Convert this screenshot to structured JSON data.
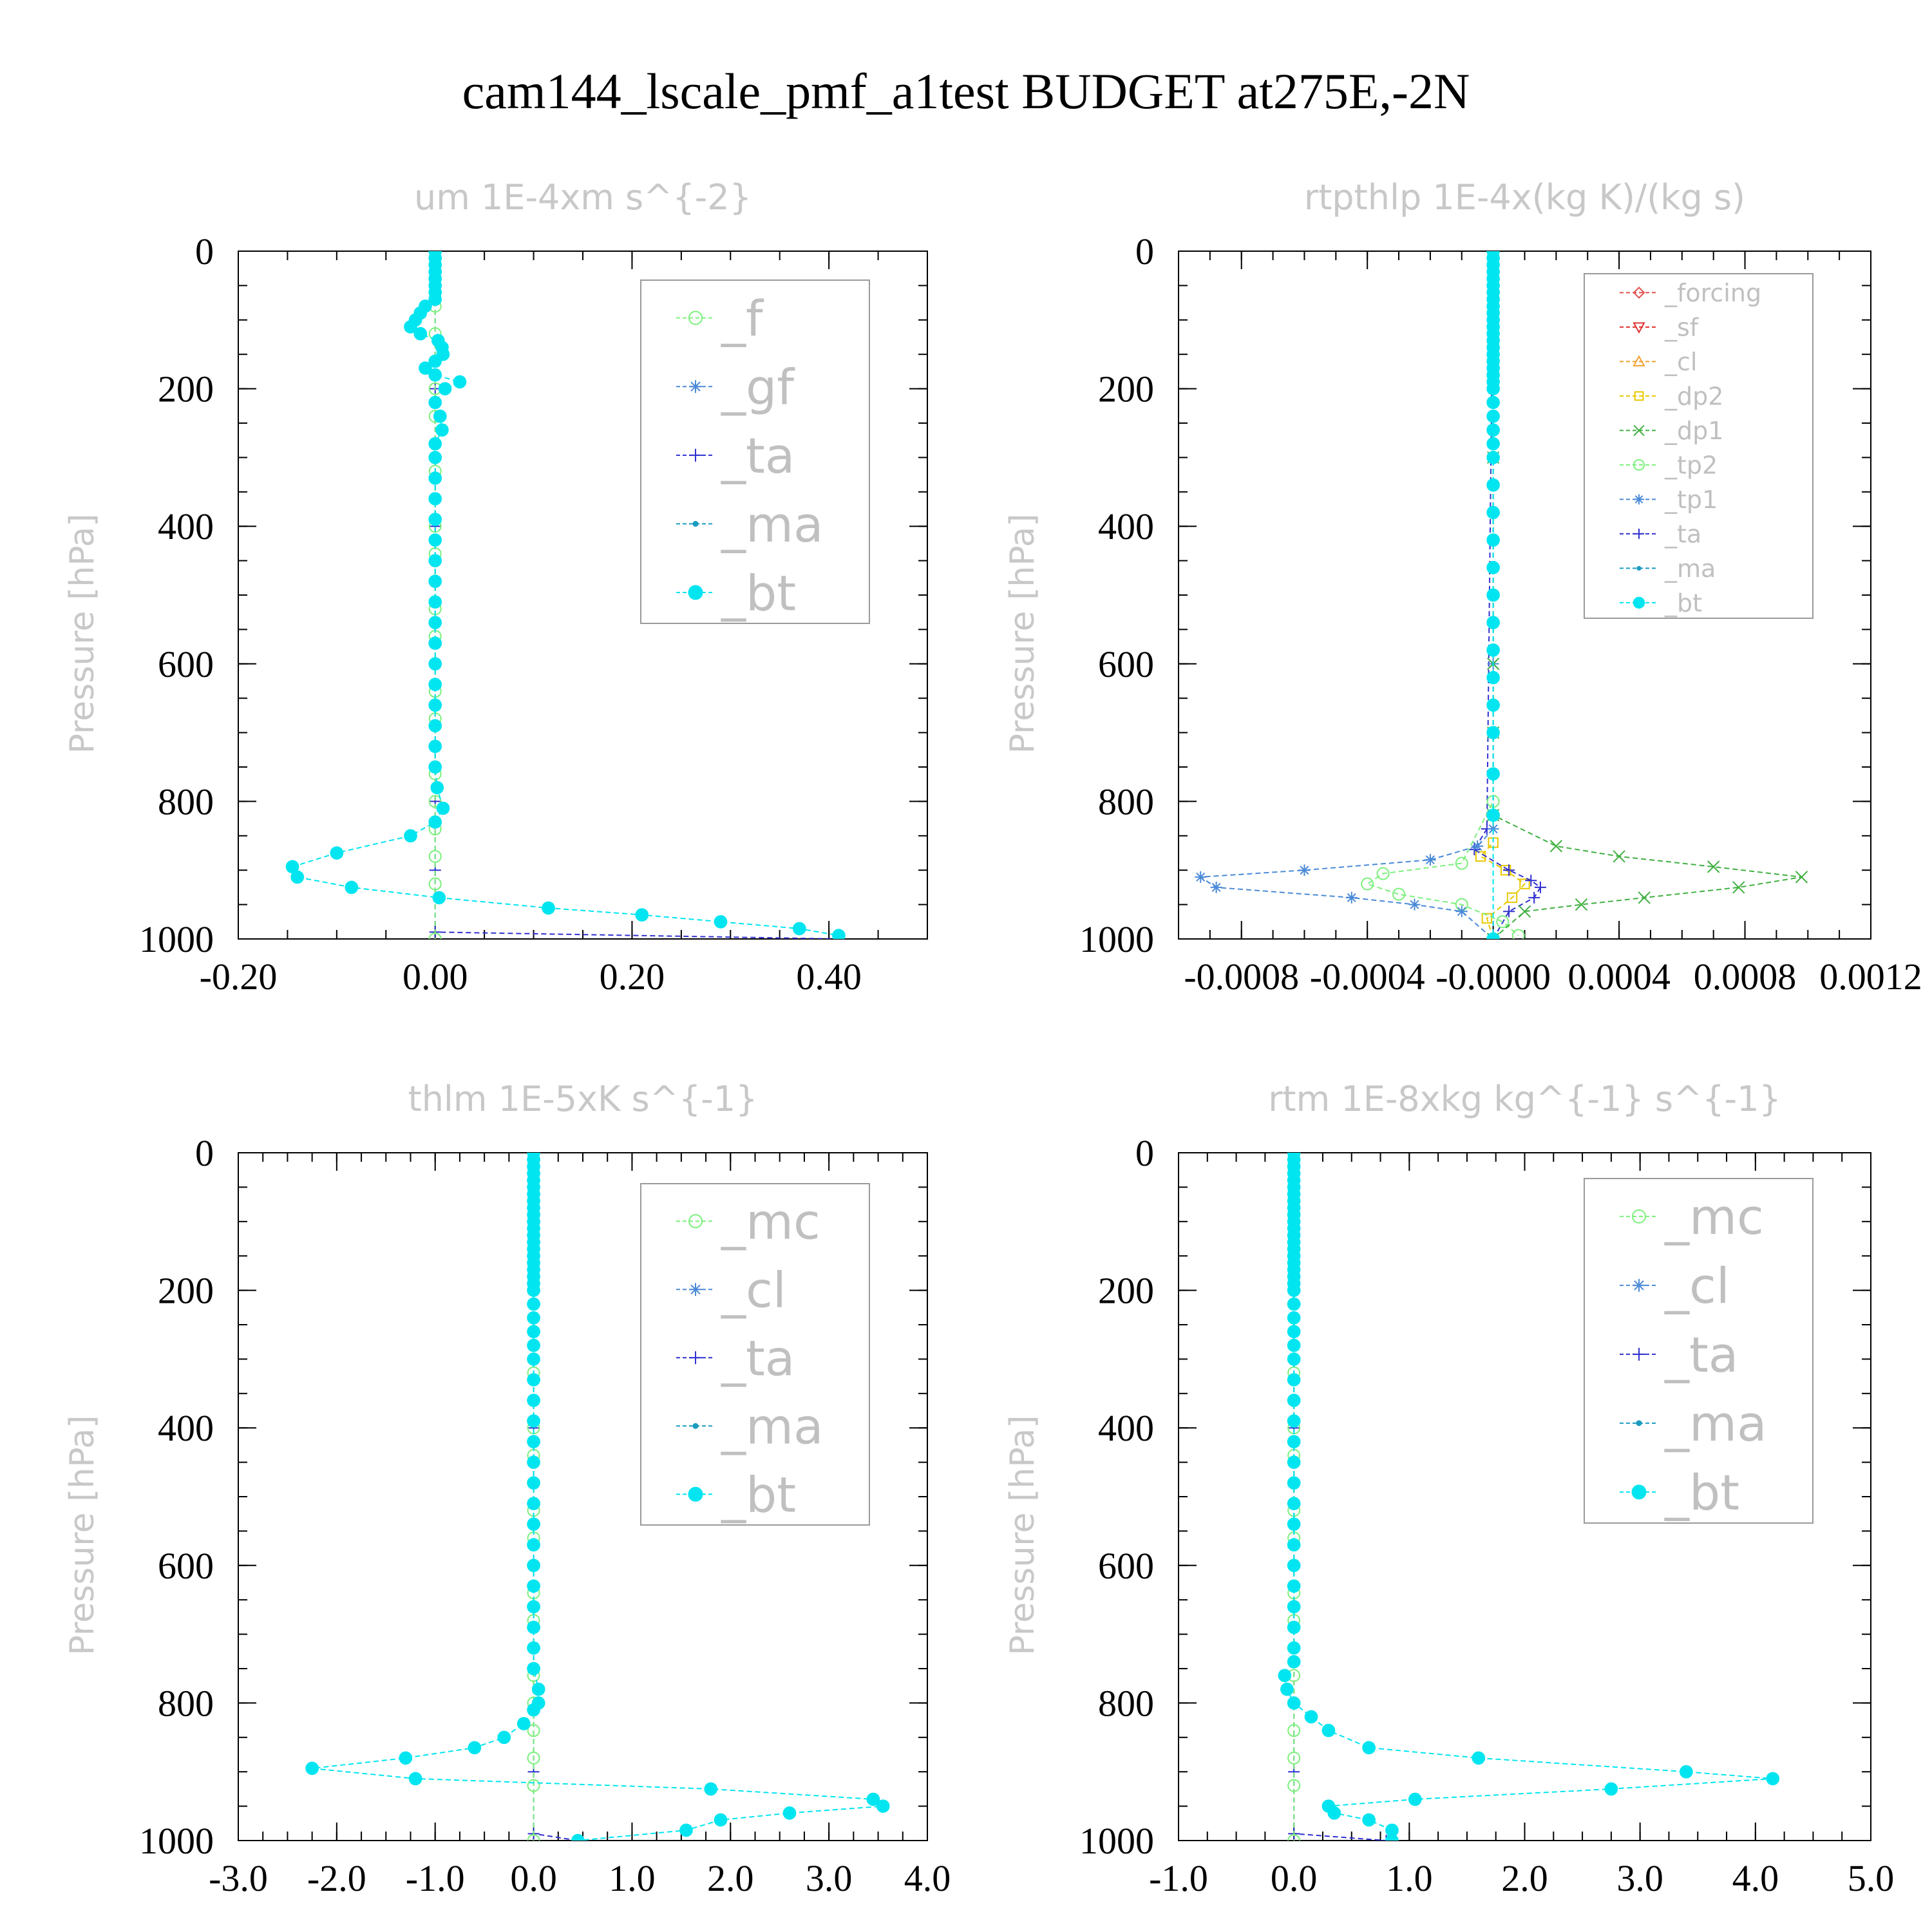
{
  "figure_title": "cam144_lscale_pmf_a1test  BUDGET at275E,-2N",
  "chart_data": [
    {
      "type": "line",
      "title": "um   1E-4xm s^{-2}",
      "ylabel": "Pressure [hPa]",
      "xlim": [
        -0.2,
        0.5
      ],
      "ylim": [
        1000,
        0
      ],
      "xticks": [
        "-0.20",
        "0.00",
        "0.20",
        "0.40"
      ],
      "xtick_values": [
        -0.2,
        0.0,
        0.2,
        0.4
      ],
      "yticks": [
        "0",
        "200",
        "400",
        "600",
        "800",
        "1000"
      ],
      "ytick_values": [
        0,
        200,
        400,
        600,
        800,
        1000
      ],
      "legend_position": "top-right",
      "legend": [
        {
          "label": "_f",
          "color": "#7cf07c",
          "marker": "circle"
        },
        {
          "label": "_gf",
          "color": "#4a8ad8",
          "marker": "star"
        },
        {
          "label": "_ta",
          "color": "#3030d0",
          "marker": "plus"
        },
        {
          "label": "_ma",
          "color": "#1a9cc0",
          "marker": "dot"
        },
        {
          "label": "_bt",
          "color": "#00e5f0",
          "marker": "filled"
        }
      ],
      "series": [
        {
          "name": "_bt",
          "color": "#00e5f0",
          "marker": "filled",
          "x": [
            0.0,
            0.0,
            0.0,
            0.0,
            0.0,
            0.0,
            0.0,
            0.0,
            -0.01,
            -0.015,
            -0.02,
            -0.025,
            -0.015,
            0.003,
            0.007,
            0.008,
            0.0,
            -0.01,
            0.0,
            0.025,
            0.01,
            0.0,
            0.005,
            0.007,
            0.0,
            0.0,
            0.0,
            0.0,
            0.0,
            0.0,
            0.0,
            0.0,
            0.0,
            0.0,
            0.0,
            0.0,
            0.0,
            0.0,
            0.0,
            0.0,
            0.0,
            0.002,
            0.008,
            0.0,
            -0.025,
            -0.1,
            -0.145,
            -0.14,
            -0.085,
            0.004,
            0.115,
            0.21,
            0.29,
            0.37,
            0.41
          ],
          "y": [
            0,
            10,
            20,
            30,
            40,
            50,
            60,
            70,
            80,
            90,
            100,
            110,
            120,
            130,
            140,
            150,
            160,
            170,
            180,
            190,
            200,
            220,
            240,
            260,
            280,
            300,
            330,
            360,
            390,
            420,
            450,
            480,
            510,
            540,
            570,
            600,
            630,
            660,
            690,
            720,
            750,
            780,
            810,
            830,
            850,
            875,
            895,
            910,
            925,
            940,
            955,
            965,
            975,
            985,
            995
          ]
        },
        {
          "name": "_f",
          "color": "#7cf07c",
          "marker": "circle",
          "x": [
            0,
            0,
            0,
            0,
            0,
            0,
            0,
            0,
            0,
            0,
            0,
            0,
            0,
            0,
            0,
            0,
            0,
            0,
            0,
            0,
            0,
            0,
            0,
            0,
            0
          ],
          "y": [
            0,
            40,
            80,
            120,
            160,
            200,
            240,
            280,
            320,
            360,
            400,
            440,
            480,
            520,
            560,
            600,
            640,
            680,
            720,
            760,
            800,
            840,
            880,
            920,
            1000
          ]
        },
        {
          "name": "_ta",
          "color": "#3030d0",
          "marker": "plus",
          "x": [
            0,
            0,
            0,
            0,
            0,
            0,
            0,
            0.41
          ],
          "y": [
            0,
            200,
            400,
            600,
            800,
            900,
            990,
            1000
          ]
        }
      ]
    },
    {
      "type": "line",
      "title": "rtpthlp   1E-4x(kg K)/(kg s)",
      "ylabel": "Pressure [hPa]",
      "xlim": [
        -0.001,
        0.0012
      ],
      "ylim": [
        1000,
        0
      ],
      "xticks": [
        "-0.0008",
        "-0.0004",
        "-0.0000",
        "0.0004",
        "0.0008",
        "0.0012"
      ],
      "xtick_values": [
        -0.0008,
        -0.0004,
        0.0,
        0.0004,
        0.0008,
        0.0012
      ],
      "yticks": [
        "0",
        "200",
        "400",
        "600",
        "800",
        "1000"
      ],
      "ytick_values": [
        0,
        200,
        400,
        600,
        800,
        1000
      ],
      "legend_position": "top-right",
      "legend": [
        {
          "label": "_forcing",
          "color": "#e05050",
          "marker": "diamond"
        },
        {
          "label": "_sf",
          "color": "#e03030",
          "marker": "triangle-down"
        },
        {
          "label": "_cl",
          "color": "#f0a030",
          "marker": "triangle"
        },
        {
          "label": "_dp2",
          "color": "#e8c800",
          "marker": "square"
        },
        {
          "label": "_dp1",
          "color": "#40b040",
          "marker": "cross"
        },
        {
          "label": "_tp2",
          "color": "#7cf07c",
          "marker": "circle"
        },
        {
          "label": "_tp1",
          "color": "#4a8ad8",
          "marker": "star"
        },
        {
          "label": "_ta",
          "color": "#3030d0",
          "marker": "plus"
        },
        {
          "label": "_ma",
          "color": "#1a9cc0",
          "marker": "dot"
        },
        {
          "label": "_bt",
          "color": "#00e5f0",
          "marker": "filled"
        }
      ],
      "series": [
        {
          "name": "_bt",
          "color": "#00e5f0",
          "marker": "filled",
          "x": [
            0,
            0,
            0,
            0,
            0,
            0,
            0,
            0,
            0,
            0,
            0,
            0,
            0,
            0,
            0,
            0,
            0,
            0,
            0,
            0,
            0,
            0,
            0,
            0,
            0,
            0,
            0,
            0,
            0,
            0,
            0,
            0,
            0,
            0,
            0,
            0,
            0,
            0,
            0
          ],
          "y": [
            0,
            10,
            20,
            30,
            40,
            50,
            60,
            70,
            80,
            90,
            100,
            110,
            120,
            130,
            140,
            150,
            160,
            170,
            180,
            190,
            200,
            220,
            240,
            260,
            280,
            300,
            340,
            380,
            420,
            460,
            500,
            540,
            580,
            620,
            660,
            700,
            760,
            820,
            1000
          ]
        },
        {
          "name": "_dp1",
          "color": "#40b040",
          "marker": "cross",
          "x": [
            0,
            0,
            0,
            0,
            0,
            0.0002,
            0.0004,
            0.0007,
            0.00098,
            0.00078,
            0.00048,
            0.00028,
            0.0001,
            0.0
          ],
          "y": [
            0,
            300,
            600,
            700,
            820,
            865,
            880,
            895,
            910,
            925,
            940,
            950,
            960,
            1000
          ]
        },
        {
          "name": "_tp1",
          "color": "#4a8ad8",
          "marker": "star",
          "x": [
            0,
            0,
            0,
            -5e-05,
            -0.0002,
            -0.0006,
            -0.00093,
            -0.00088,
            -0.00045,
            -0.00025,
            -0.0001,
            0
          ],
          "y": [
            0,
            600,
            840,
            865,
            885,
            900,
            910,
            925,
            940,
            950,
            960,
            1000
          ]
        },
        {
          "name": "_tp2",
          "color": "#7cf07c",
          "marker": "circle",
          "x": [
            0,
            0,
            -0.0001,
            -0.00035,
            -0.0004,
            -0.0003,
            -0.0001,
            3e-05,
            8e-05
          ],
          "y": [
            0,
            800,
            890,
            905,
            920,
            935,
            950,
            975,
            995
          ]
        },
        {
          "name": "_ta",
          "color": "#3030d0",
          "marker": "plus",
          "x": [
            0,
            -2e-05,
            -6e-05,
            5e-05,
            0.00012,
            0.00015,
            0.00013,
            5e-05,
            0
          ],
          "y": [
            0,
            840,
            870,
            900,
            915,
            925,
            940,
            960,
            1000
          ]
        },
        {
          "name": "_dp2",
          "color": "#e8c800",
          "marker": "square",
          "x": [
            0,
            0,
            -4e-05,
            4e-05,
            0.0001,
            6e-05,
            -2e-05,
            0
          ],
          "y": [
            0,
            860,
            880,
            900,
            920,
            940,
            970,
            1000
          ]
        }
      ]
    },
    {
      "type": "line",
      "title": "thlm   1E-5xK s^{-1}",
      "ylabel": "Pressure [hPa]",
      "xlim": [
        -3.0,
        4.0
      ],
      "ylim": [
        1000,
        0
      ],
      "xticks": [
        "-3.0",
        "-2.0",
        "-1.0",
        "0.0",
        "1.0",
        "2.0",
        "3.0",
        "4.0"
      ],
      "xtick_values": [
        -3,
        -2,
        -1,
        0,
        1,
        2,
        3,
        4
      ],
      "yticks": [
        "0",
        "200",
        "400",
        "600",
        "800",
        "1000"
      ],
      "ytick_values": [
        0,
        200,
        400,
        600,
        800,
        1000
      ],
      "legend_position": "top-right",
      "legend": [
        {
          "label": "_mc",
          "color": "#7cf07c",
          "marker": "circle"
        },
        {
          "label": "_cl",
          "color": "#4a8ad8",
          "marker": "star"
        },
        {
          "label": "_ta",
          "color": "#3030d0",
          "marker": "plus"
        },
        {
          "label": "_ma",
          "color": "#1a9cc0",
          "marker": "dot"
        },
        {
          "label": "_bt",
          "color": "#00e5f0",
          "marker": "filled"
        }
      ],
      "series": [
        {
          "name": "_bt",
          "color": "#00e5f0",
          "marker": "filled",
          "x": [
            0,
            0,
            0,
            0,
            0,
            0,
            0,
            0,
            0,
            0,
            0,
            0,
            0,
            0,
            0,
            0,
            0,
            0,
            0,
            0,
            0,
            0,
            0,
            0,
            0,
            0,
            0,
            0,
            0,
            0,
            0,
            0,
            0,
            0,
            0,
            0,
            0,
            0,
            0,
            0,
            0,
            0.05,
            0.05,
            0,
            -0.1,
            -0.3,
            -0.6,
            -1.3,
            -2.25,
            -1.2,
            1.8,
            3.45,
            3.55,
            2.6,
            1.9,
            1.55,
            0.45
          ],
          "y": [
            0,
            10,
            20,
            30,
            40,
            50,
            60,
            70,
            80,
            90,
            100,
            110,
            120,
            130,
            140,
            150,
            160,
            170,
            180,
            190,
            200,
            220,
            240,
            260,
            280,
            300,
            330,
            360,
            390,
            420,
            450,
            480,
            510,
            540,
            570,
            600,
            630,
            660,
            690,
            720,
            750,
            780,
            800,
            810,
            830,
            850,
            865,
            880,
            895,
            910,
            925,
            940,
            950,
            960,
            970,
            985,
            1000
          ]
        },
        {
          "name": "_mc",
          "color": "#7cf07c",
          "marker": "circle",
          "x": [
            0,
            0,
            0,
            0,
            0,
            0,
            0,
            0,
            0,
            0,
            0,
            0,
            0,
            0,
            0,
            0,
            0,
            0,
            0,
            0,
            0,
            0,
            0,
            0,
            0
          ],
          "y": [
            0,
            40,
            80,
            120,
            160,
            200,
            240,
            280,
            320,
            360,
            400,
            440,
            480,
            520,
            560,
            600,
            640,
            680,
            720,
            760,
            800,
            840,
            880,
            920,
            1000
          ]
        },
        {
          "name": "_ta",
          "color": "#3030d0",
          "marker": "plus",
          "x": [
            0,
            0,
            0,
            0,
            0.45
          ],
          "y": [
            0,
            400,
            900,
            990,
            1000
          ]
        }
      ]
    },
    {
      "type": "line",
      "title": "rtm   1E-8xkg kg^{-1} s^{-1}",
      "ylabel": "Pressure [hPa]",
      "xlim": [
        -1.0,
        5.0
      ],
      "ylim": [
        1000,
        0
      ],
      "xticks": [
        "-1.0",
        "0.0",
        "1.0",
        "2.0",
        "3.0",
        "4.0",
        "5.0"
      ],
      "xtick_values": [
        -1,
        0,
        1,
        2,
        3,
        4,
        5
      ],
      "yticks": [
        "0",
        "200",
        "400",
        "600",
        "800",
        "1000"
      ],
      "ytick_values": [
        0,
        200,
        400,
        600,
        800,
        1000
      ],
      "legend_position": "top-right",
      "legend": [
        {
          "label": "_mc",
          "color": "#7cf07c",
          "marker": "circle"
        },
        {
          "label": "_cl",
          "color": "#4a8ad8",
          "marker": "star"
        },
        {
          "label": "_ta",
          "color": "#3030d0",
          "marker": "plus"
        },
        {
          "label": "_ma",
          "color": "#1a9cc0",
          "marker": "dot"
        },
        {
          "label": "_bt",
          "color": "#00e5f0",
          "marker": "filled"
        }
      ],
      "series": [
        {
          "name": "_bt",
          "color": "#00e5f0",
          "marker": "filled",
          "x": [
            0,
            0,
            0,
            0,
            0,
            0,
            0,
            0,
            0,
            0,
            0,
            0,
            0,
            0,
            0,
            0,
            0,
            0,
            0,
            0,
            0,
            0,
            0,
            0,
            0,
            0,
            0,
            0,
            0,
            0,
            0,
            0,
            0,
            0,
            0,
            0,
            0,
            0,
            0,
            0,
            0,
            -0.08,
            -0.06,
            0,
            0.15,
            0.3,
            0.65,
            1.6,
            3.4,
            4.15,
            2.75,
            1.05,
            0.3,
            0.35,
            0.65,
            0.85,
            0.85
          ],
          "y": [
            0,
            10,
            20,
            30,
            40,
            50,
            60,
            70,
            80,
            90,
            100,
            110,
            120,
            130,
            140,
            150,
            160,
            170,
            180,
            190,
            200,
            220,
            240,
            260,
            280,
            300,
            330,
            360,
            390,
            420,
            450,
            480,
            510,
            540,
            570,
            600,
            630,
            660,
            690,
            720,
            740,
            760,
            780,
            800,
            820,
            840,
            865,
            880,
            900,
            910,
            925,
            940,
            950,
            960,
            970,
            985,
            1000
          ]
        },
        {
          "name": "_mc",
          "color": "#7cf07c",
          "marker": "circle",
          "x": [
            0,
            0,
            0,
            0,
            0,
            0,
            0,
            0,
            0,
            0,
            0,
            0,
            0,
            0,
            0,
            0,
            0,
            0,
            0,
            0,
            0,
            0,
            0,
            0,
            0
          ],
          "y": [
            0,
            40,
            80,
            120,
            160,
            200,
            240,
            280,
            320,
            360,
            400,
            440,
            480,
            520,
            560,
            600,
            640,
            680,
            720,
            760,
            800,
            840,
            880,
            920,
            1000
          ]
        },
        {
          "name": "_ta",
          "color": "#3030d0",
          "marker": "plus",
          "x": [
            0,
            0,
            0,
            0,
            0.8
          ],
          "y": [
            0,
            400,
            900,
            990,
            1000
          ]
        }
      ]
    }
  ]
}
